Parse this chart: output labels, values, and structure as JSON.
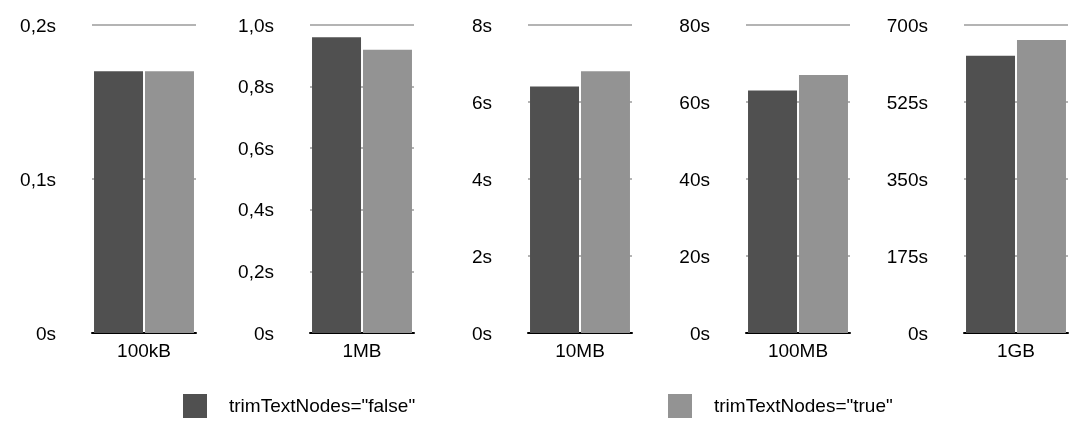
{
  "chart_data": [
    {
      "type": "bar",
      "categories": [
        "100kB"
      ],
      "ylim": [
        0,
        0.2
      ],
      "yticks": [
        {
          "value": 0,
          "label": "0s"
        },
        {
          "value": 0.1,
          "label": "0,1s"
        },
        {
          "value": 0.2,
          "label": "0,2s"
        }
      ],
      "grid": "y",
      "legend": "bottom",
      "series": [
        {
          "name": "trimTextNodes=\"false\"",
          "color": "#505050",
          "values": [
            0.17
          ]
        },
        {
          "name": "trimTextNodes=\"true\"",
          "color": "#939393",
          "values": [
            0.17
          ]
        }
      ]
    },
    {
      "type": "bar",
      "categories": [
        "1MB"
      ],
      "ylim": [
        0,
        1
      ],
      "yticks": [
        {
          "value": 0,
          "label": "0s"
        },
        {
          "value": 0.2,
          "label": "0,2s"
        },
        {
          "value": 0.4,
          "label": "0,4s"
        },
        {
          "value": 0.6,
          "label": "0,6s"
        },
        {
          "value": 0.8,
          "label": "0,8s"
        },
        {
          "value": 1,
          "label": "1,0s"
        }
      ],
      "grid": "y",
      "series": [
        {
          "color": "#505050",
          "values": [
            0.96
          ]
        },
        {
          "color": "#939393",
          "values": [
            0.92
          ]
        }
      ]
    },
    {
      "type": "bar",
      "categories": [
        "10MB"
      ],
      "ylim": [
        0,
        8
      ],
      "yticks": [
        {
          "value": 0,
          "label": "0s"
        },
        {
          "value": 2,
          "label": "2s"
        },
        {
          "value": 4,
          "label": "4s"
        },
        {
          "value": 6,
          "label": "6s"
        },
        {
          "value": 8,
          "label": "8s"
        }
      ],
      "grid": "y",
      "series": [
        {
          "color": "#505050",
          "values": [
            6.4
          ]
        },
        {
          "color": "#939393",
          "values": [
            6.8
          ]
        }
      ]
    },
    {
      "type": "bar",
      "categories": [
        "100MB"
      ],
      "ylim": [
        0,
        80
      ],
      "yticks": [
        {
          "value": 0,
          "label": "0s"
        },
        {
          "value": 20,
          "label": "20s"
        },
        {
          "value": 40,
          "label": "40s"
        },
        {
          "value": 60,
          "label": "60s"
        },
        {
          "value": 80,
          "label": "80s"
        }
      ],
      "grid": "y",
      "series": [
        {
          "color": "#505050",
          "values": [
            63
          ]
        },
        {
          "color": "#939393",
          "values": [
            67
          ]
        }
      ]
    },
    {
      "type": "bar",
      "categories": [
        "1GB"
      ],
      "ylim": [
        0,
        700
      ],
      "yticks": [
        {
          "value": 0,
          "label": "0s"
        },
        {
          "value": 175,
          "label": "175s"
        },
        {
          "value": 350,
          "label": "350s"
        },
        {
          "value": 525,
          "label": "525s"
        },
        {
          "value": 700,
          "label": "700s"
        }
      ],
      "grid": "y",
      "series": [
        {
          "color": "#505050",
          "values": [
            630
          ]
        },
        {
          "color": "#939393",
          "values": [
            666
          ]
        }
      ]
    }
  ]
}
